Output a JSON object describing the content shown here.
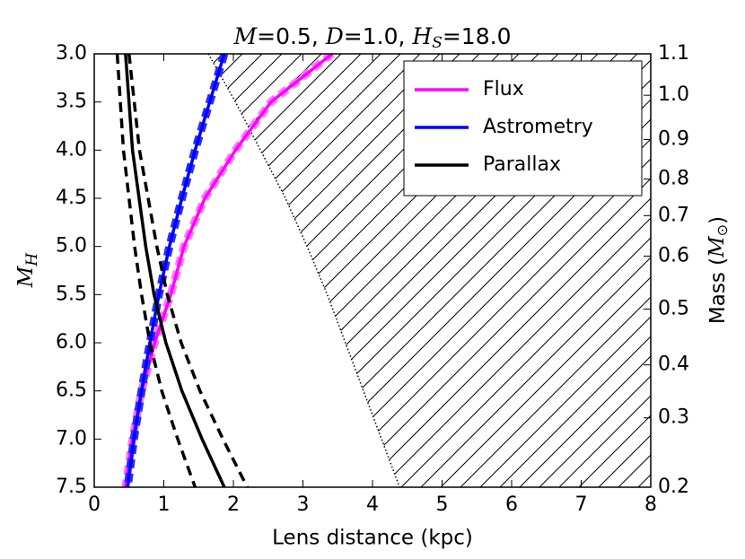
{
  "chart_data": {
    "type": "line",
    "title": [
      "M",
      "=0.5, ",
      "D",
      "=1.0, ",
      "H",
      "S",
      "=18.0"
    ],
    "x_label": "Lens distance (kpc)",
    "y_label": [
      "M",
      "H"
    ],
    "y2_label": [
      "Mass (",
      "M",
      "⊙",
      ")"
    ],
    "xlim": [
      0,
      8
    ],
    "xticks": [
      0,
      1,
      2,
      3,
      4,
      5,
      6,
      7,
      8
    ],
    "ylim": [
      7.5,
      3.0
    ],
    "yticks": [
      {
        "value": 3.0,
        "label": "3.0"
      },
      3.5,
      {
        "value": 4.0,
        "label": "4.0"
      },
      4.5,
      {
        "value": 5.0,
        "label": "5.0"
      },
      5.5,
      {
        "value": 6.0,
        "label": "6.0"
      },
      6.5,
      {
        "value": 7.0,
        "label": "7.0"
      },
      7.5
    ],
    "y2ticks": [
      {
        "value": 1.1,
        "label": "1.1",
        "y": 3.0
      },
      {
        "value": 1.0,
        "label": "1.0",
        "y": 3.43
      },
      {
        "value": 0.9,
        "label": "0.9",
        "y": 3.89
      },
      {
        "value": 0.8,
        "label": "0.8",
        "y": 4.3
      },
      {
        "value": 0.7,
        "label": "0.7",
        "y": 4.68
      },
      {
        "value": 0.6,
        "label": "0.6",
        "y": 5.1
      },
      {
        "value": 0.5,
        "label": "0.5",
        "y": 5.65
      },
      {
        "value": 0.4,
        "label": "0.4",
        "y": 6.23
      },
      {
        "value": 0.3,
        "label": "0.3",
        "y": 6.78
      },
      {
        "value": 0.2,
        "label": "0.2",
        "y": 7.5
      }
    ],
    "legend": "upper right",
    "series": [
      {
        "name": "Flux",
        "color": "#ff00ff",
        "band_color": "#ff77ff",
        "style": "solid",
        "x": [
          3.42,
          2.54,
          2.03,
          1.59,
          1.29,
          1.1,
          0.87,
          0.68,
          0.55,
          0.45
        ],
        "y": [
          3.0,
          3.5,
          4.0,
          4.5,
          5.0,
          5.5,
          6.0,
          6.5,
          7.0,
          7.5
        ]
      },
      {
        "name": "Astrometry",
        "color": "#0000ff",
        "band_color": "#2b2bff",
        "style": "solid",
        "x": [
          1.87,
          1.66,
          1.45,
          1.26,
          1.08,
          0.93,
          0.8,
          0.68,
          0.57,
          0.48
        ],
        "y": [
          3.0,
          3.5,
          4.0,
          4.5,
          5.0,
          5.5,
          6.0,
          6.5,
          7.0,
          7.5
        ]
      },
      {
        "name": "Parallax",
        "color": "#000000",
        "style": "solid",
        "x": [
          0.45,
          0.55,
          0.74,
          0.86,
          1.03,
          1.26,
          1.55,
          1.87
        ],
        "y": [
          3.0,
          4.0,
          5.0,
          5.5,
          6.0,
          6.5,
          7.0,
          7.5
        ]
      },
      {
        "color": "#000000",
        "style": "dashed",
        "x": [
          0.33,
          0.42,
          0.58,
          0.68,
          0.8,
          0.97,
          1.2,
          1.45
        ],
        "y": [
          3.0,
          4.0,
          5.0,
          5.5,
          6.0,
          6.5,
          7.0,
          7.5
        ]
      },
      {
        "color": "#000000",
        "style": "dashed",
        "x": [
          0.5,
          0.65,
          0.9,
          1.05,
          1.25,
          1.52,
          1.85,
          2.2
        ],
        "y": [
          3.0,
          4.0,
          5.0,
          5.5,
          6.0,
          6.5,
          7.0,
          7.5
        ]
      }
    ],
    "hatched_region": {
      "x": [
        1.64,
        2.03,
        2.39,
        2.75,
        3.06,
        3.35,
        3.61,
        3.87,
        4.13,
        4.39
      ],
      "y": [
        3.0,
        3.5,
        4.0,
        4.5,
        5.0,
        5.5,
        6.0,
        6.5,
        7.0,
        7.5
      ]
    }
  }
}
